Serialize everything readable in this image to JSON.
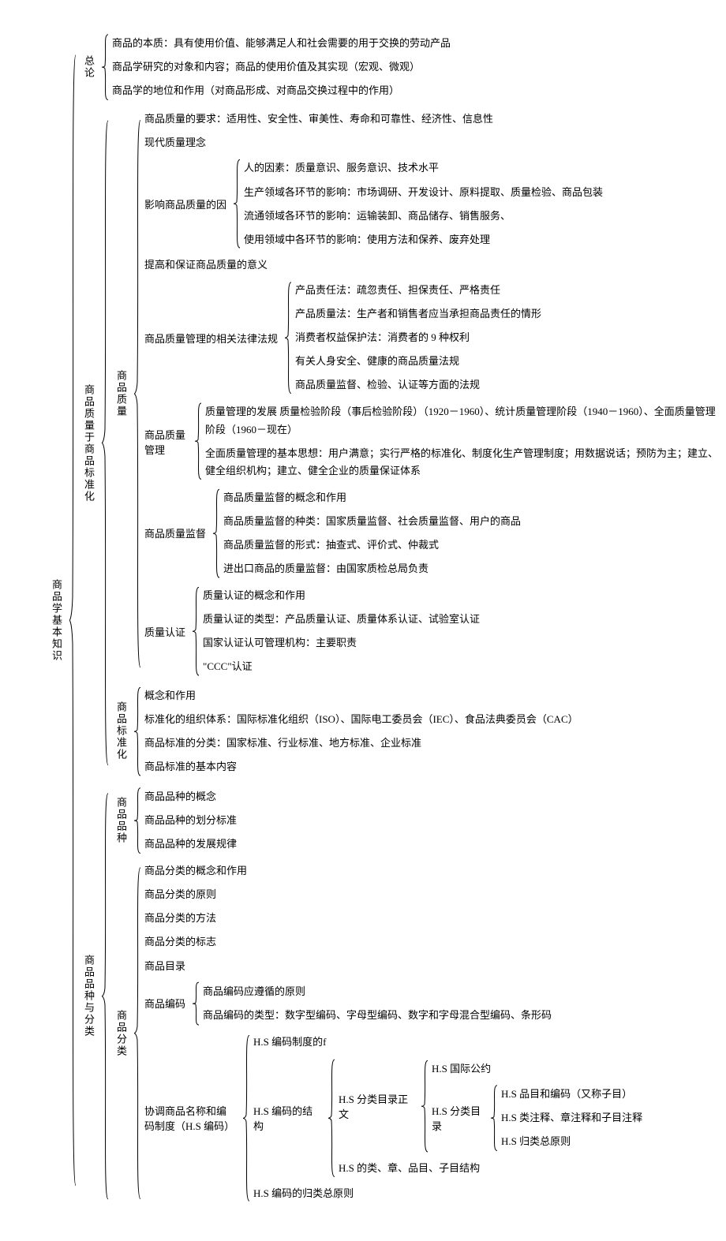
{
  "colors": {
    "stroke": "#000000",
    "text": "#000000",
    "bg": "#ffffff"
  },
  "font": {
    "family": "SimSun",
    "size_pt": 10,
    "line_height": 1.7
  },
  "tree": {
    "label": "商品学基本知识",
    "vertical": true,
    "children": [
      {
        "label": "总论",
        "vertical": true,
        "children": [
          {
            "leaf": "商品的本质：具有使用价值、能够满足人和社会需要的用于交换的劳动产品"
          },
          {
            "leaf": "商品学研究的对象和内容；商品的使用价值及其实现（宏观、微观）"
          },
          {
            "leaf": "商品学的地位和作用（对商品形成、对商品交换过程中的作用）"
          }
        ]
      },
      {
        "label": "商品质量于商品标准化",
        "vertical": true,
        "children": [
          {
            "label": "商品质量",
            "vertical": true,
            "children": [
              {
                "leaf": "商品质量的要求：适用性、安全性、审美性、寿命和可靠性、经济性、信息性"
              },
              {
                "leaf": "现代质量理念"
              },
              {
                "label": "影响商品质量的因",
                "vertical": false,
                "children": [
                  {
                    "leaf": "人的因素：质量意识、服务意识、技术水平"
                  },
                  {
                    "leaf": "生产领域各环节的影响：市场调研、开发设计、原料提取、质量检验、商品包装"
                  },
                  {
                    "leaf": "流通领域各环节的影响：运输装卸、商品储存、销售服务、"
                  },
                  {
                    "leaf": "使用领域中各环节的影响：使用方法和保养、废弃处理"
                  }
                ]
              },
              {
                "leaf": "提高和保证商品质量的意义"
              },
              {
                "label": "商品质量管理的相关法律法规",
                "vertical": false,
                "children": [
                  {
                    "leaf": "产品责任法：疏忽责任、担保责任、严格责任"
                  },
                  {
                    "leaf": "产品质量法：生产者和销售者应当承担商品责任的情形"
                  },
                  {
                    "leaf": "消费者权益保护法：消费者的 9 种权利"
                  },
                  {
                    "leaf": "有关人身安全、健康的商品质量法规"
                  },
                  {
                    "leaf": "商品质量监督、检验、认证等方面的法规"
                  }
                ]
              },
              {
                "label": "商品质量管理",
                "vertical": false,
                "children": [
                  {
                    "leaf": "质量管理的发展 质量检验阶段（事后检验阶段）（1920－1960）、统计质量管理阶段（1940－1960）、全面质量管理阶段（1960－现在）"
                  },
                  {
                    "leaf": "全面质量管理的基本思想：用户满意；实行严格的标准化、制度化生产管理制度；用数据说话；预防为主；建立、健全组织机构；建立、健全企业的质量保证体系"
                  }
                ]
              },
              {
                "label": "商品质量监督",
                "vertical": false,
                "children": [
                  {
                    "leaf": "商品质量监督的概念和作用"
                  },
                  {
                    "leaf": "商品质量监督的种类：国家质量监督、社会质量监督、用户的商品"
                  },
                  {
                    "leaf": "商品质量监督的形式：抽查式、评价式、仲裁式"
                  },
                  {
                    "leaf": "进出口商品的质量监督：由国家质检总局负责"
                  }
                ]
              },
              {
                "label": "质量认证",
                "vertical": false,
                "children": [
                  {
                    "leaf": "质量认证的概念和作用"
                  },
                  {
                    "leaf": "质量认证的类型：产品质量认证、质量体系认证、试验室认证"
                  },
                  {
                    "leaf": "国家认证认可管理机构：主要职责"
                  },
                  {
                    "leaf": "\"CCC\"认证"
                  }
                ]
              }
            ]
          },
          {
            "label": "商品标准化",
            "vertical": true,
            "children": [
              {
                "leaf": "概念和作用"
              },
              {
                "leaf": "标准化的组织体系：国际标准化组织（ISO）、国际电工委员会（IEC）、食品法典委员会（CAC）"
              },
              {
                "leaf": "商品标准的分类：国家标准、行业标准、地方标准、企业标准"
              },
              {
                "leaf": "商品标准的基本内容"
              }
            ]
          }
        ]
      },
      {
        "label": "商品品种与分类",
        "vertical": true,
        "children": [
          {
            "label": "商品品种",
            "vertical": true,
            "children": [
              {
                "leaf": "商品品种的概念"
              },
              {
                "leaf": "商品品种的划分标准"
              },
              {
                "leaf": "商品品种的发展规律"
              }
            ]
          },
          {
            "label": "商品分类",
            "vertical": true,
            "children": [
              {
                "leaf": "商品分类的概念和作用"
              },
              {
                "leaf": "商品分类的原则"
              },
              {
                "leaf": "商品分类的方法"
              },
              {
                "leaf": "商品分类的标志"
              },
              {
                "leaf": "商品目录"
              },
              {
                "label": "商品编码",
                "vertical": false,
                "children": [
                  {
                    "leaf": "商品编码应遵循的原则"
                  },
                  {
                    "leaf": "商品编码的类型：数字型编码、字母型编码、数字和字母混合型编码、条形码"
                  }
                ]
              },
              {
                "label": "协调商品名称和编码制度（H.S 编码）",
                "vertical": false,
                "label_width": 120,
                "children": [
                  {
                    "leaf": "H.S 编码制度的f"
                  },
                  {
                    "label": "H.S 编码的结构",
                    "vertical": false,
                    "label_width": 90,
                    "children": [
                      {
                        "label": "H.S 分类目录正文",
                        "vertical": false,
                        "label_width": 100,
                        "children": [
                          {
                            "leaf": "H.S 国际公约"
                          },
                          {
                            "label": "H.S 分类目录",
                            "vertical": false,
                            "label_width": 70,
                            "children": [
                              {
                                "leaf": "H.S 品目和编码（又称子目）"
                              },
                              {
                                "leaf": "H.S 类注释、章注释和子目注释"
                              },
                              {
                                "leaf": "H.S 归类总原则"
                              }
                            ]
                          }
                        ]
                      },
                      {
                        "leaf": "H.S 的类、章、品目、子目结构"
                      }
                    ]
                  },
                  {
                    "leaf": "H.S 编码的归类总原则"
                  }
                ]
              }
            ]
          }
        ]
      }
    ]
  }
}
